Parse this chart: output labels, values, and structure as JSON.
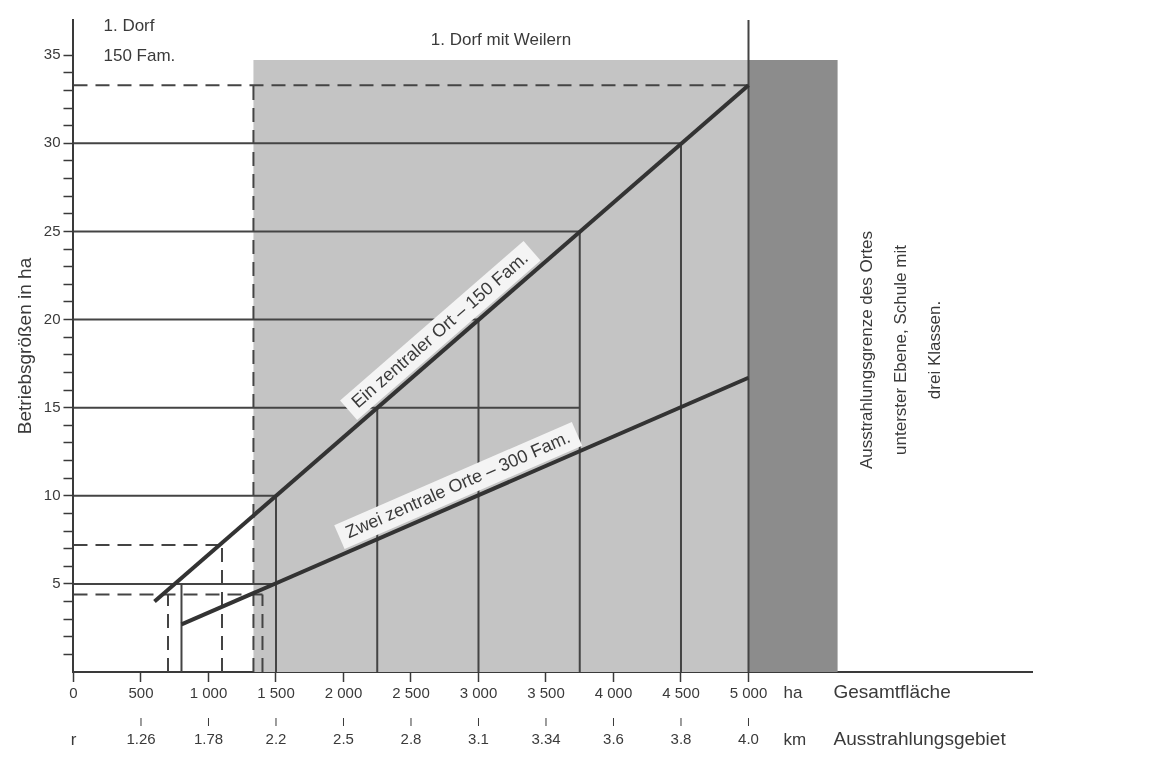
{
  "chart_data": {
    "type": "line",
    "ylabel": "Betriebsgrößen in ha",
    "xlabel": "Gesamtfläche",
    "xlim": [
      0,
      7100
    ],
    "xticks": [
      0,
      500,
      {
        "value": 1000,
        "label": "1 000"
      },
      {
        "value": 1500,
        "label": "1 500"
      },
      {
        "value": 2000,
        "label": "2 000"
      },
      {
        "value": 2500,
        "label": "2 500"
      },
      {
        "value": 3000,
        "label": "3 000"
      },
      {
        "value": 3500,
        "label": "3 500"
      },
      {
        "value": 4000,
        "label": "4 000"
      },
      {
        "value": 4500,
        "label": "4 500"
      },
      {
        "value": 5000,
        "label": "5 000"
      }
    ],
    "ylim": [
      0,
      37
    ],
    "yticks": [
      {
        "value": 1,
        "label": null
      },
      {
        "value": 2,
        "label": null
      },
      {
        "value": 3,
        "label": null
      },
      {
        "value": 4,
        "label": null
      },
      5,
      {
        "value": 6,
        "label": null
      },
      {
        "value": 7,
        "label": null
      },
      {
        "value": 8,
        "label": null
      },
      {
        "value": 9,
        "label": null
      },
      10,
      {
        "value": 11,
        "label": null
      },
      {
        "value": 12,
        "label": null
      },
      {
        "value": 13,
        "label": null
      },
      {
        "value": 14,
        "label": null
      },
      15,
      {
        "value": 16,
        "label": null
      },
      {
        "value": 17,
        "label": null
      },
      {
        "value": 18,
        "label": null
      },
      {
        "value": 19,
        "label": null
      },
      20,
      {
        "value": 21,
        "label": null
      },
      {
        "value": 22,
        "label": null
      },
      {
        "value": 23,
        "label": null
      },
      {
        "value": 24,
        "label": null
      },
      25,
      {
        "value": 26,
        "label": null
      },
      {
        "value": 27,
        "label": null
      },
      {
        "value": 28,
        "label": null
      },
      {
        "value": 29,
        "label": null
      },
      30,
      {
        "value": 31,
        "label": null
      },
      {
        "value": 32,
        "label": null
      },
      {
        "value": 33,
        "label": null
      },
      {
        "value": 34,
        "label": null
      },
      35
    ],
    "grid": false,
    "legend": false,
    "marker": "none",
    "bands": [
      {
        "axis": "x",
        "from": 1333,
        "to": 5000,
        "label": "1. Dorf mit Weilern",
        "color": "#c4c4c4"
      },
      {
        "axis": "x",
        "from": 5000,
        "to": 5660,
        "label": null,
        "color": "#8c8c8c"
      }
    ],
    "annotations": [
      "1. Dorf\n150 Fam.",
      "Ausstrahlungsgrenze des Ortes\nunterster Ebene, Schule mit\ndrei Klassen.",
      "ha",
      "km",
      "r",
      "Ausstrahlungsgebiet",
      "1.26",
      "1.78",
      "2.2",
      "2.5",
      "2.8",
      "3.1",
      "3.34",
      "3.6",
      "3.8",
      "4.0"
    ],
    "series": [
      {
        "name": "Ein zentraler Ort – 150 Fam.",
        "color": "#333333",
        "x": [
          600,
          5000
        ],
        "values": [
          4,
          33.3
        ]
      },
      {
        "name": "Zwei zentrale Orte – 300 Fam.",
        "color": "#333333",
        "x": [
          800,
          5000
        ],
        "values": [
          2.7,
          16.7
        ]
      },
      {
        "color": "#444444",
        "x": [
          0,
          4500
        ],
        "values": [
          30,
          30
        ]
      },
      {
        "color": "#444444",
        "x": [
          0,
          3750
        ],
        "values": [
          25,
          25
        ]
      },
      {
        "color": "#444444",
        "x": [
          0,
          3000
        ],
        "values": [
          20,
          20
        ]
      },
      {
        "color": "#444444",
        "x": [
          0,
          3750
        ],
        "values": [
          15,
          15
        ]
      },
      {
        "color": "#444444",
        "x": [
          0,
          1500
        ],
        "values": [
          10,
          10
        ]
      },
      {
        "color": "#444444",
        "x": [
          0,
          1500
        ],
        "values": [
          5,
          5
        ]
      },
      {
        "color": "#444444",
        "x": [
          1500,
          1500
        ],
        "values": [
          0,
          10
        ]
      },
      {
        "color": "#444444",
        "x": [
          2250,
          2250
        ],
        "values": [
          0,
          15
        ]
      },
      {
        "color": "#444444",
        "x": [
          3000,
          3000
        ],
        "values": [
          0,
          20
        ]
      },
      {
        "color": "#444444",
        "x": [
          3750,
          3750
        ],
        "values": [
          0,
          25
        ]
      },
      {
        "color": "#444444",
        "x": [
          4500,
          4500
        ],
        "values": [
          0,
          30
        ]
      },
      {
        "color": "#444444",
        "x": [
          800,
          800
        ],
        "values": [
          0,
          5
        ]
      },
      {
        "color": "#444444",
        "x": [
          5000,
          5000
        ],
        "values": [
          0,
          37
        ]
      },
      {
        "color": "#444444",
        "line_style": "dashed",
        "x": [
          0,
          5000
        ],
        "values": [
          33.3,
          33.3
        ]
      },
      {
        "color": "#444444",
        "line_style": "dashed",
        "x": [
          1333,
          1333
        ],
        "values": [
          0,
          33.3
        ]
      },
      {
        "color": "#444444",
        "line_style": "dashed",
        "x": [
          0,
          1100
        ],
        "values": [
          7.2,
          7.2
        ]
      },
      {
        "color": "#444444",
        "line_style": "dashed",
        "x": [
          1100,
          1100
        ],
        "values": [
          0,
          7.2
        ]
      },
      {
        "color": "#444444",
        "line_style": "dashed",
        "x": [
          0,
          1400
        ],
        "values": [
          4.4,
          4.4
        ]
      },
      {
        "color": "#444444",
        "line_style": "dashed",
        "x": [
          700,
          700
        ],
        "values": [
          0,
          4.4
        ]
      },
      {
        "color": "#444444",
        "line_style": "dashed",
        "x": [
          1400,
          1400
        ],
        "values": [
          0,
          4.4
        ]
      }
    ]
  }
}
